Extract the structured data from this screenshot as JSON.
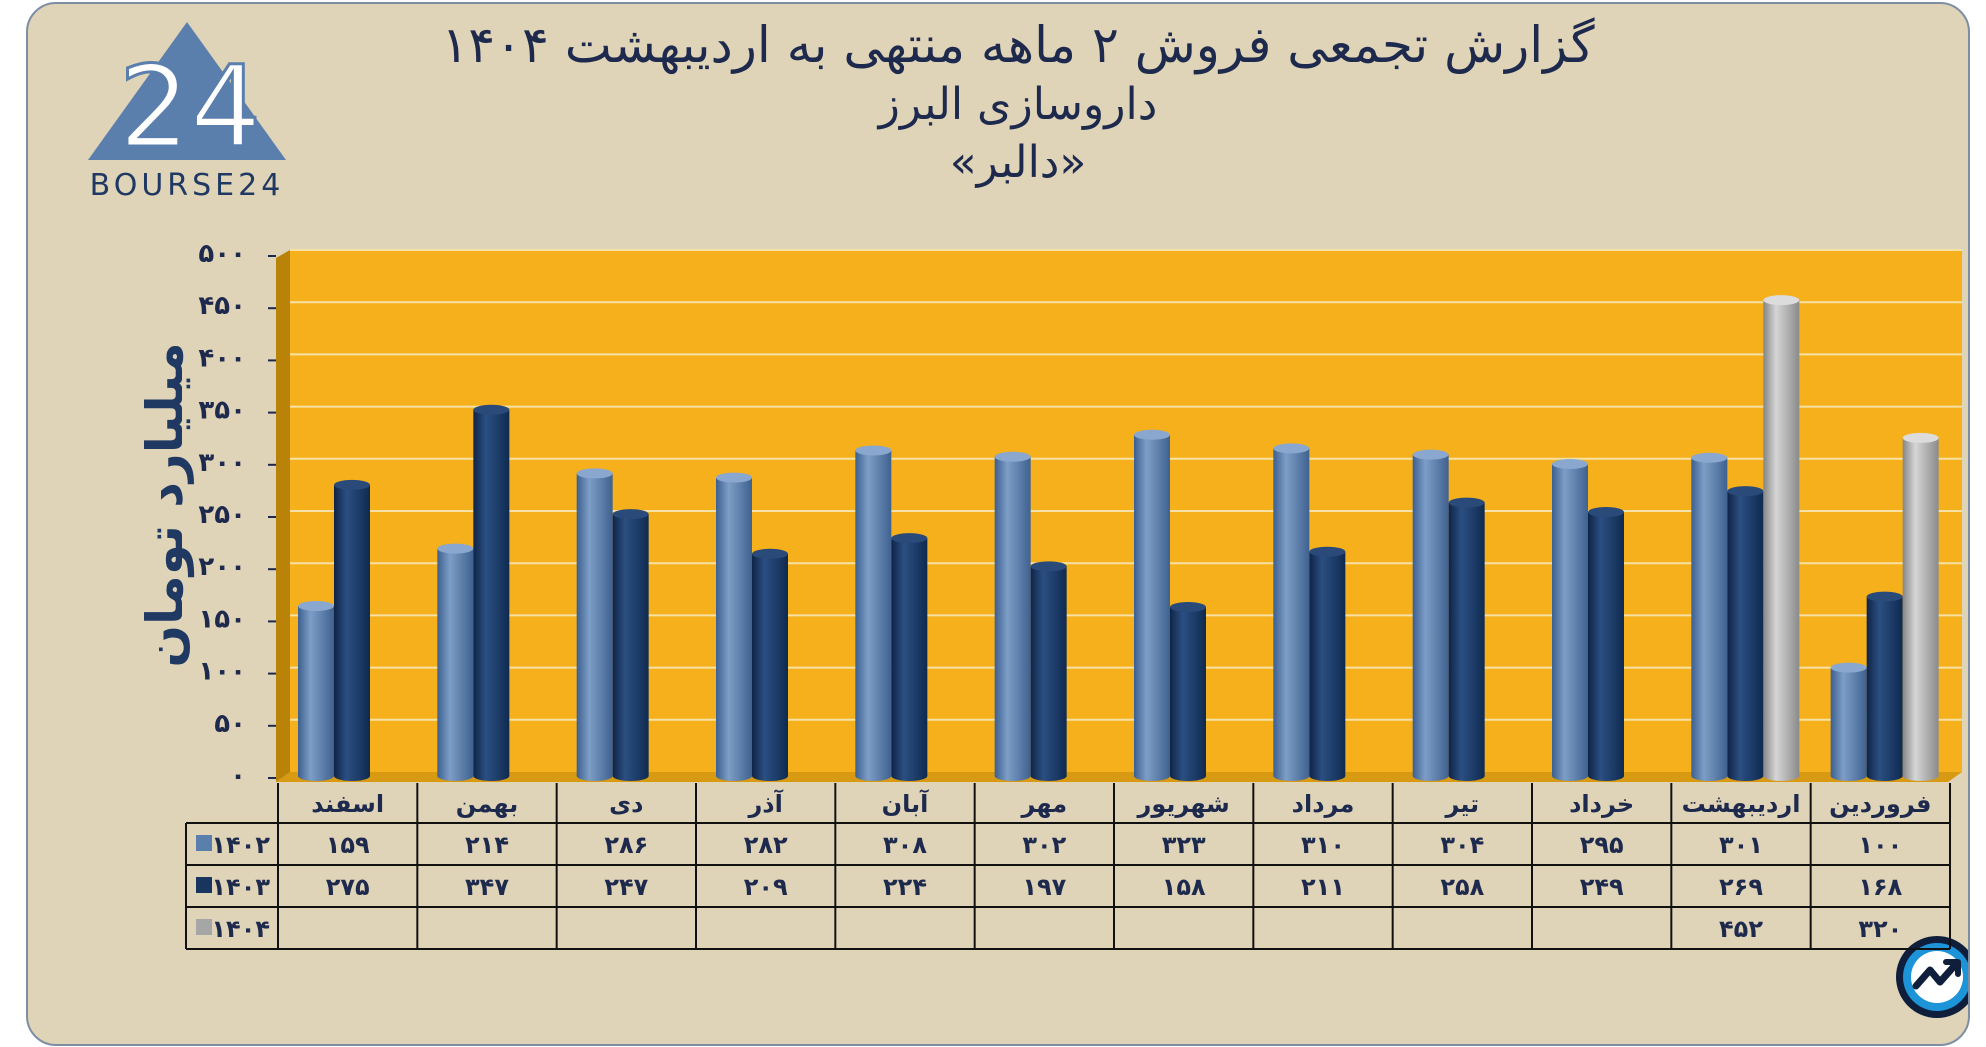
{
  "title": {
    "line1": "گزارش تجمعی فروش ۲ ماهه منتهی به اردیبهشت ۱۴۰۴",
    "line2": "داروسازی البرز",
    "line3": "«دالبر»"
  },
  "logo": {
    "mark": "24",
    "text": "BOURSE24"
  },
  "brand_badge": "trend-arrow-icon",
  "colors": {
    "background": "#e0d4b8",
    "plot_area": "#f6b01b",
    "series_1402": "#5b7fad",
    "series_1403": "#17355f",
    "series_1404": "#a6a6a6",
    "text": "#1e2a4d"
  },
  "chart_data": {
    "type": "bar",
    "title": "گزارش تجمعی فروش ۲ ماهه منتهی به اردیبهشت ۱۴۰۴",
    "ylabel": "میلیارد تومان",
    "xlabel": "",
    "ylim": [
      0,
      500
    ],
    "yticks": [
      0,
      50,
      100,
      150,
      200,
      250,
      300,
      350,
      400,
      450,
      500
    ],
    "ytick_labels": [
      "۰",
      "۵۰",
      "۱۰۰",
      "۱۵۰",
      "۲۰۰",
      "۲۵۰",
      "۳۰۰",
      "۳۵۰",
      "۴۰۰",
      "۴۵۰",
      "۵۰۰"
    ],
    "grid": true,
    "categories": [
      "فروردین",
      "اردیبهشت",
      "خرداد",
      "تیر",
      "مرداد",
      "شهریور",
      "مهر",
      "آبان",
      "آذر",
      "دی",
      "بهمن",
      "اسفند"
    ],
    "series": [
      {
        "name": "۱۴۰۲",
        "values": [
          100,
          301,
          295,
          304,
          310,
          323,
          302,
          308,
          282,
          286,
          214,
          159
        ],
        "labels": [
          "۱۰۰",
          "۳۰۱",
          "۲۹۵",
          "۳۰۴",
          "۳۱۰",
          "۳۲۳",
          "۳۰۲",
          "۳۰۸",
          "۲۸۲",
          "۲۸۶",
          "۲۱۴",
          "۱۵۹"
        ]
      },
      {
        "name": "۱۴۰۳",
        "values": [
          168,
          269,
          249,
          258,
          211,
          158,
          197,
          224,
          209,
          247,
          347,
          275
        ],
        "labels": [
          "۱۶۸",
          "۲۶۹",
          "۲۴۹",
          "۲۵۸",
          "۲۱۱",
          "۱۵۸",
          "۱۹۷",
          "۲۲۴",
          "۲۰۹",
          "۲۴۷",
          "۳۴۷",
          "۲۷۵"
        ]
      },
      {
        "name": "۱۴۰۴",
        "values": [
          320,
          452,
          null,
          null,
          null,
          null,
          null,
          null,
          null,
          null,
          null,
          null
        ],
        "labels": [
          "۳۲۰",
          "۴۵۲",
          "",
          "",
          "",
          "",
          "",
          "",
          "",
          "",
          "",
          ""
        ]
      }
    ],
    "legend": "table-left"
  }
}
